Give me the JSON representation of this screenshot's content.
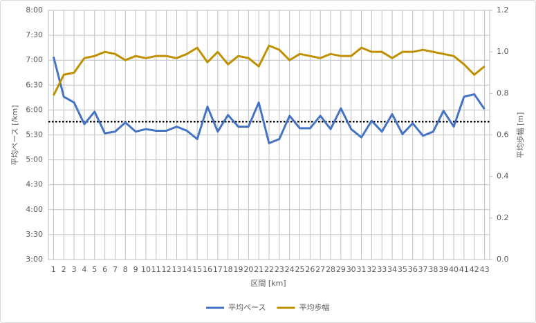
{
  "chart_data": {
    "type": "line",
    "x_label": "区間 [km]",
    "y_label": "平均ペース [/km]",
    "y2_label": "平均歩幅 [m]",
    "categories": [
      "1",
      "2",
      "3",
      "4",
      "5",
      "6",
      "7",
      "8",
      "9",
      "10",
      "11",
      "12",
      "13",
      "14",
      "15",
      "16",
      "17",
      "18",
      "19",
      "20",
      "21",
      "22",
      "23",
      "24",
      "25",
      "26",
      "27",
      "28",
      "29",
      "30",
      "31",
      "32",
      "33",
      "34",
      "35",
      "36",
      "37",
      "38",
      "39",
      "40",
      "41",
      "42",
      "43"
    ],
    "series": [
      {
        "name": "平均ペース",
        "color": "#4472c4",
        "values": [
          424,
          376,
          369,
          343,
          358,
          332,
          334,
          345,
          334,
          337,
          335,
          335,
          340,
          335,
          325,
          364,
          334,
          354,
          340,
          340,
          369,
          320,
          325,
          353,
          338,
          338,
          353,
          337,
          362,
          337,
          327,
          347,
          334,
          355,
          331,
          344,
          329,
          334,
          359,
          340,
          376,
          379,
          361
        ]
      },
      {
        "name": "平均歩幅",
        "color": "#bf9000",
        "axis": "y2",
        "values": [
          0.79,
          0.89,
          0.9,
          0.97,
          0.98,
          1.0,
          0.99,
          0.96,
          0.98,
          0.97,
          0.98,
          0.98,
          0.97,
          0.99,
          1.02,
          0.95,
          1.0,
          0.94,
          0.98,
          0.97,
          0.93,
          1.03,
          1.01,
          0.96,
          0.99,
          0.98,
          0.97,
          0.99,
          0.98,
          0.98,
          1.02,
          1.0,
          1.0,
          0.97,
          1.0,
          1.0,
          1.01,
          1.0,
          0.99,
          0.98,
          0.94,
          0.89,
          0.93
        ]
      }
    ],
    "reference_line": 346,
    "ylim": [
      180,
      480
    ],
    "yticks": [
      {
        "value": 180,
        "label": "3:00"
      },
      {
        "value": 210,
        "label": "3:30"
      },
      {
        "value": 240,
        "label": "4:00"
      },
      {
        "value": 270,
        "label": "4:30"
      },
      {
        "value": 300,
        "label": "5:00"
      },
      {
        "value": 330,
        "label": "5:30"
      },
      {
        "value": 360,
        "label": "6:00"
      },
      {
        "value": 390,
        "label": "6:30"
      },
      {
        "value": 420,
        "label": "7:00"
      },
      {
        "value": 450,
        "label": "7:30"
      },
      {
        "value": 480,
        "label": "8:00"
      }
    ],
    "y2lim": [
      0,
      1.2
    ],
    "y2ticks": [
      {
        "value": 0,
        "label": "0.0"
      },
      0.2,
      0.4,
      0.6,
      0.8,
      {
        "value": 1,
        "label": "1.0"
      },
      1.2
    ],
    "grid": true,
    "legend": "bottom"
  }
}
